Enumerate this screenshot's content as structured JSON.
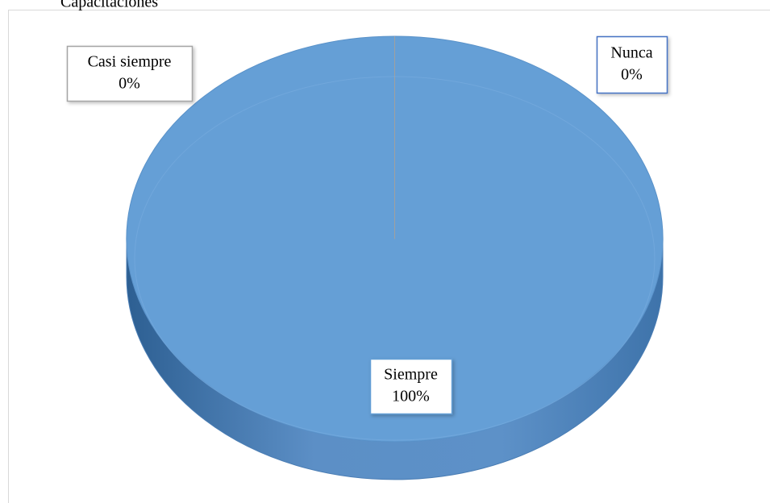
{
  "chart_data": {
    "type": "pie",
    "title": "Capacitaciones",
    "categories": [
      "Siempre",
      "Casi siempre",
      "Nunca"
    ],
    "values": [
      100,
      0,
      0
    ],
    "value_labels": [
      "100%",
      "0%",
      "0%"
    ],
    "colors": [
      "#659fd6",
      "#a5a5a5",
      "#4472c4"
    ]
  }
}
